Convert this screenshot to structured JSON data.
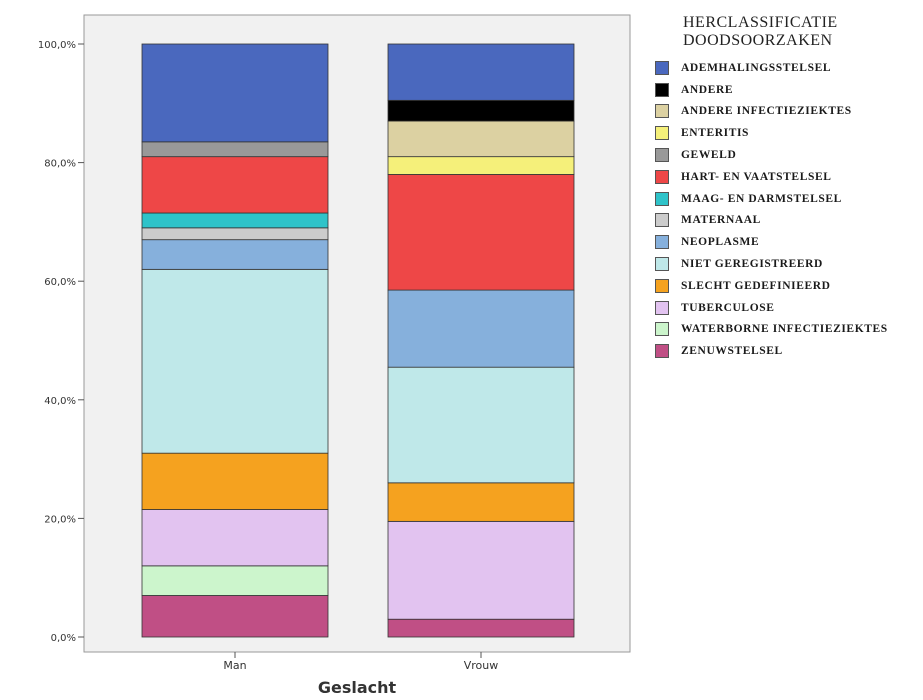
{
  "chart_data": {
    "type": "bar",
    "stacked": true,
    "xlabel": "Geslacht",
    "ylabel": "",
    "ylim": [
      0,
      100
    ],
    "y_ticks": [
      "0,0%",
      "20,0%",
      "40,0%",
      "60,0%",
      "80,0%",
      "100,0%"
    ],
    "y_tick_values": [
      0,
      20,
      40,
      60,
      80,
      100
    ],
    "categories": [
      "Man",
      "Vrouw"
    ],
    "legend_title": "HERCLASSIFICATIE DOODSOORZAKEN",
    "legend_placement": "right",
    "series": [
      {
        "name": "ZENUWSTELSEL",
        "color": "#c04f85",
        "values": [
          7.0,
          3.0
        ]
      },
      {
        "name": "WATERBORNE INFECTIEZIEKTES",
        "color": "#ccf5cc",
        "values": [
          5.0,
          0.0
        ]
      },
      {
        "name": "TUBERCULOSE",
        "color": "#e2c3f0",
        "values": [
          9.5,
          16.5
        ]
      },
      {
        "name": "SLECHT GEDEFINIEERD",
        "color": "#f5a21f",
        "values": [
          9.5,
          6.5
        ]
      },
      {
        "name": "NIET GEREGISTREERD",
        "color": "#bfe8e9",
        "values": [
          31.0,
          19.5
        ]
      },
      {
        "name": "NEOPLASME",
        "color": "#86b0dc",
        "values": [
          5.0,
          13.0
        ]
      },
      {
        "name": "MATERNAAL",
        "color": "#cccccc",
        "values": [
          2.0,
          0.0
        ]
      },
      {
        "name": "MAAG- EN DARMSTELSEL",
        "color": "#2fc3c9",
        "values": [
          2.5,
          0.0
        ]
      },
      {
        "name": "HART- EN VAATSTELSEL",
        "color": "#ee4747",
        "values": [
          9.5,
          19.5
        ]
      },
      {
        "name": "GEWELD",
        "color": "#999999",
        "values": [
          2.5,
          0.0
        ]
      },
      {
        "name": "ENTERITIS",
        "color": "#f5f07a",
        "values": [
          0.0,
          3.0
        ]
      },
      {
        "name": "ANDERE INFECTIEZIEKTES",
        "color": "#dcd1a2",
        "values": [
          0.0,
          6.0
        ]
      },
      {
        "name": "ANDERE",
        "color": "#000000",
        "values": [
          0.0,
          3.5
        ]
      },
      {
        "name": "ADEMHALINGSSTELSEL",
        "color": "#4a68be",
        "values": [
          16.5,
          9.5
        ]
      }
    ],
    "legend_order": [
      "ADEMHALINGSSTELSEL",
      "ANDERE",
      "ANDERE INFECTIEZIEKTES",
      "ENTERITIS",
      "GEWELD",
      "HART- EN VAATSTELSEL",
      "MAAG- EN DARMSTELSEL",
      "MATERNAAL",
      "NEOPLASME",
      "NIET GEREGISTREERD",
      "SLECHT GEDEFINIEERD",
      "TUBERCULOSE",
      "WATERBORNE INFECTIEZIEKTES",
      "ZENUWSTELSEL"
    ],
    "plot_background": "#f1f1f1",
    "grid": false
  }
}
